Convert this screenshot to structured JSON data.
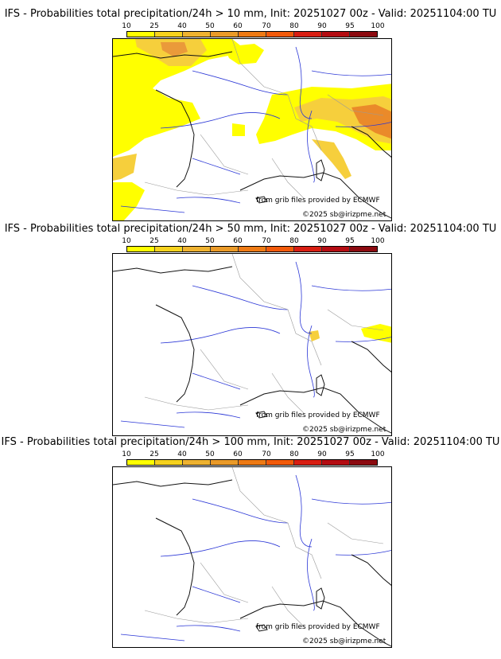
{
  "panels": [
    {
      "title": "IFS - Probabilities total precipitation/24h > 10 mm, Init: 20251027 00z - Valid: 20251104:00 TU",
      "threshold_mm": 10,
      "credit": "from grib files provided by ECMWF",
      "copyright": "©2025 sb@irizpme.net"
    },
    {
      "title": "IFS - Probabilities total precipitation/24h > 50 mm, Init: 20251027 00z - Valid: 20251104:00 TU",
      "threshold_mm": 50,
      "credit": "from grib files provided by ECMWF",
      "copyright": "©2025 sb@irizpme.net"
    },
    {
      "title": "IFS - Probabilities total precipitation/24h > 100 mm, Init: 20251027 00z - Valid: 20251104:00 TU",
      "threshold_mm": 100,
      "credit": "from grib files provided by ECMWF",
      "copyright": "©2025 sb@irizpme.net"
    }
  ],
  "colorbar": {
    "ticks": [
      "10",
      "25",
      "40",
      "50",
      "60",
      "70",
      "80",
      "90",
      "95",
      "100"
    ],
    "colors": [
      "#ffff00",
      "#f6d21e",
      "#eeb230",
      "#ea9a28",
      "#ee7a14",
      "#f25a0a",
      "#d81e12",
      "#b40c12",
      "#8c0a10",
      "#5a0408"
    ]
  },
  "map_colors": {
    "coast": "#111111",
    "borders": "#9a9a9a",
    "rivers": "#2a36d6",
    "prob_low": "#ffff00",
    "prob_mid": "#f6cf3c",
    "prob_high": "#ea8a2a"
  }
}
